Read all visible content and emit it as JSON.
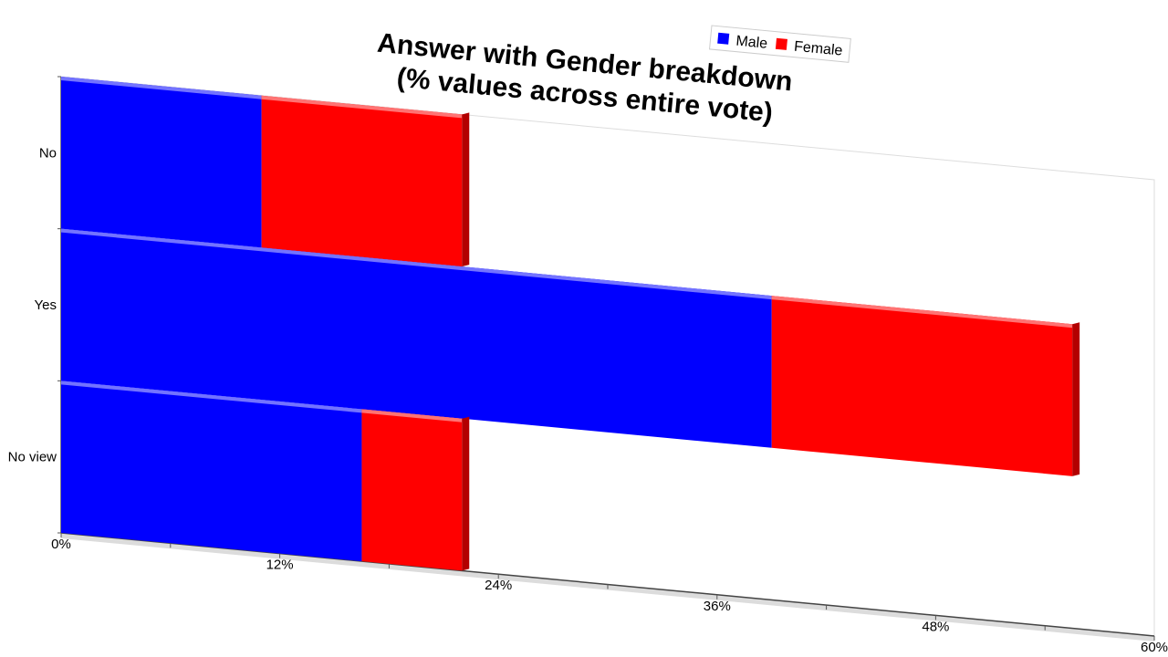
{
  "chart_data": {
    "type": "bar",
    "orientation": "horizontal",
    "stacked": true,
    "title": [
      "Answer with Gender breakdown",
      "(% values across entire vote)"
    ],
    "categories": [
      "No",
      "Yes",
      "No view"
    ],
    "series": [
      {
        "name": "Male",
        "values": [
          11,
          39,
          16.5
        ],
        "color": "#0000ff"
      },
      {
        "name": "Female",
        "values": [
          11,
          16.5,
          5.5
        ],
        "color": "#ff0000"
      }
    ],
    "x_ticks": [
      "0%",
      "12%",
      "24%",
      "36%",
      "48%",
      "60%"
    ],
    "xlim": [
      0,
      60
    ],
    "legend": {
      "position": "top-right"
    },
    "grid": false
  }
}
